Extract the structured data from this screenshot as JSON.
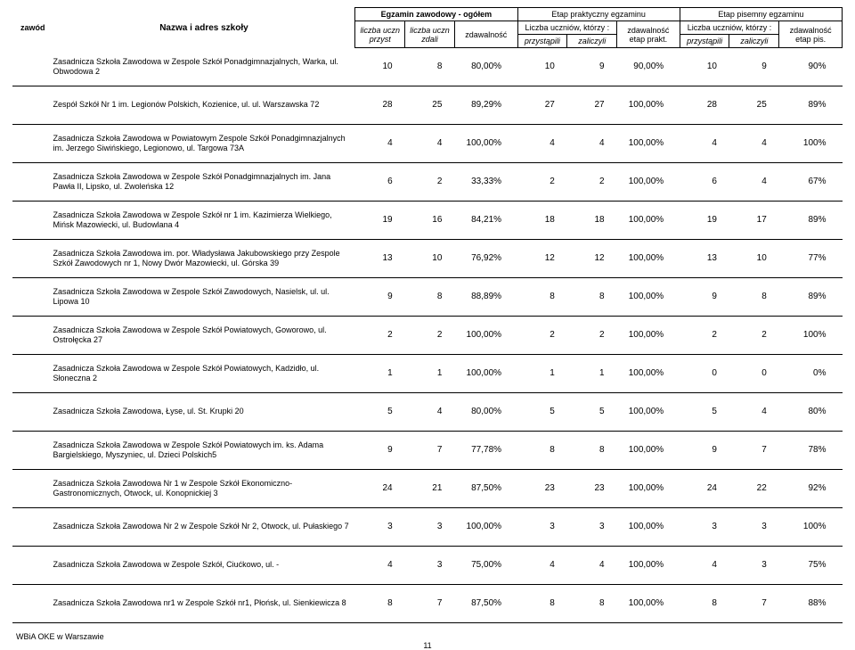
{
  "columns": {
    "c_zawod_w": 40,
    "c_school_w": 300,
    "c_num_w": 49,
    "c_pct_w": 62
  },
  "header": {
    "zawod": "zawód",
    "nazwa": "Nazwa i adres szkoły",
    "ogolem": "Egzamin zawodowy - ogółem",
    "prakt": "Etap praktyczny egzaminu",
    "pisem": "Etap pisemny egzaminu",
    "liczba_przyst": "liczba uczn przyst",
    "liczba_zdali": "liczba uczn zdali",
    "zdawalnosc": "zdawalność",
    "liczba_ktorzy": "Liczba uczniów, którzy :",
    "zdaw_prakt": "zdawalność etap prakt.",
    "zdaw_pis": "zdawalność etap pis.",
    "przystapili": "przystąpili",
    "zaliczyli": "zaliczyli"
  },
  "rows": [
    {
      "school": "Zasadnicza Szkoła Zawodowa w Zespole Szkół Ponadgimnazjalnych, Warka, ul. Obwodowa 2",
      "a": "10",
      "b": "8",
      "c": "80,00%",
      "d": "10",
      "e": "9",
      "f": "90,00%",
      "g": "10",
      "h": "9",
      "i": "90%"
    },
    {
      "school": "Zespół Szkół Nr 1 im. Legionów Polskich, Kozienice, ul. ul. Warszawska 72",
      "a": "28",
      "b": "25",
      "c": "89,29%",
      "d": "27",
      "e": "27",
      "f": "100,00%",
      "g": "28",
      "h": "25",
      "i": "89%"
    },
    {
      "school": "Zasadnicza Szkoła Zawodowa w Powiatowym Zespole Szkół Ponadgimnazjalnych im. Jerzego Siwińskiego, Legionowo, ul. Targowa 73A",
      "a": "4",
      "b": "4",
      "c": "100,00%",
      "d": "4",
      "e": "4",
      "f": "100,00%",
      "g": "4",
      "h": "4",
      "i": "100%"
    },
    {
      "school": "Zasadnicza Szkoła Zawodowa w Zespole Szkół Ponadgimnazjalnych im. Jana Pawła II, Lipsko, ul. Zwoleńska 12",
      "a": "6",
      "b": "2",
      "c": "33,33%",
      "d": "2",
      "e": "2",
      "f": "100,00%",
      "g": "6",
      "h": "4",
      "i": "67%"
    },
    {
      "school": "Zasadnicza Szkoła Zawodowa w Zespole Szkół nr 1 im. Kazimierza Wielkiego, Mińsk Mazowiecki, ul. Budowlana 4",
      "a": "19",
      "b": "16",
      "c": "84,21%",
      "d": "18",
      "e": "18",
      "f": "100,00%",
      "g": "19",
      "h": "17",
      "i": "89%"
    },
    {
      "school": "Zasadnicza Szkoła Zawodowa im. por. Władysława Jakubowskiego przy Zespole Szkół Zawodowych nr 1, Nowy Dwór Mazowiecki, ul. Górska 39",
      "a": "13",
      "b": "10",
      "c": "76,92%",
      "d": "12",
      "e": "12",
      "f": "100,00%",
      "g": "13",
      "h": "10",
      "i": "77%"
    },
    {
      "school": "Zasadnicza Szkoła Zawodowa w Zespole Szkół Zawodowych, Nasielsk, ul. ul. Lipowa 10",
      "a": "9",
      "b": "8",
      "c": "88,89%",
      "d": "8",
      "e": "8",
      "f": "100,00%",
      "g": "9",
      "h": "8",
      "i": "89%"
    },
    {
      "school": "Zasadnicza Szkoła Zawodowa w Zespole Szkół Powiatowych, Goworowo, ul. Ostrołęcka 27",
      "a": "2",
      "b": "2",
      "c": "100,00%",
      "d": "2",
      "e": "2",
      "f": "100,00%",
      "g": "2",
      "h": "2",
      "i": "100%"
    },
    {
      "school": "Zasadnicza Szkoła Zawodowa w Zespole Szkół Powiatowych, Kadzidło, ul. Słoneczna 2",
      "a": "1",
      "b": "1",
      "c": "100,00%",
      "d": "1",
      "e": "1",
      "f": "100,00%",
      "g": "0",
      "h": "0",
      "i": "0%"
    },
    {
      "school": "Zasadnicza Szkoła Zawodowa, Łyse, ul. St. Krupki 20",
      "a": "5",
      "b": "4",
      "c": "80,00%",
      "d": "5",
      "e": "5",
      "f": "100,00%",
      "g": "5",
      "h": "4",
      "i": "80%"
    },
    {
      "school": "Zasadnicza Szkoła Zawodowa w Zespole Szkół Powiatowych im. ks. Adama Bargielskiego, Myszyniec, ul. Dzieci Polskich5",
      "a": "9",
      "b": "7",
      "c": "77,78%",
      "d": "8",
      "e": "8",
      "f": "100,00%",
      "g": "9",
      "h": "7",
      "i": "78%"
    },
    {
      "school": "Zasadnicza Szkoła Zawodowa Nr 1 w Zespole Szkół Ekonomiczno-Gastronomicznych, Otwock, ul. Konopnickiej 3",
      "a": "24",
      "b": "21",
      "c": "87,50%",
      "d": "23",
      "e": "23",
      "f": "100,00%",
      "g": "24",
      "h": "22",
      "i": "92%"
    },
    {
      "school": "Zasadnicza Szkoła Zawodowa Nr 2 w Zespole Szkół Nr 2, Otwock, ul. Pułaskiego 7",
      "a": "3",
      "b": "3",
      "c": "100,00%",
      "d": "3",
      "e": "3",
      "f": "100,00%",
      "g": "3",
      "h": "3",
      "i": "100%"
    },
    {
      "school": "Zasadnicza Szkoła Zawodowa w Zespole Szkół, Ciućkowo, ul. -",
      "a": "4",
      "b": "3",
      "c": "75,00%",
      "d": "4",
      "e": "4",
      "f": "100,00%",
      "g": "4",
      "h": "3",
      "i": "75%"
    },
    {
      "school": "Zasadnicza Szkoła Zawodowa  nr1 w Zespole Szkół nr1, Płońsk, ul. Sienkiewicza 8",
      "a": "8",
      "b": "7",
      "c": "87,50%",
      "d": "8",
      "e": "8",
      "f": "100,00%",
      "g": "8",
      "h": "7",
      "i": "88%"
    }
  ],
  "footer": {
    "left": "WBiA OKE w Warszawie",
    "page": "11"
  }
}
